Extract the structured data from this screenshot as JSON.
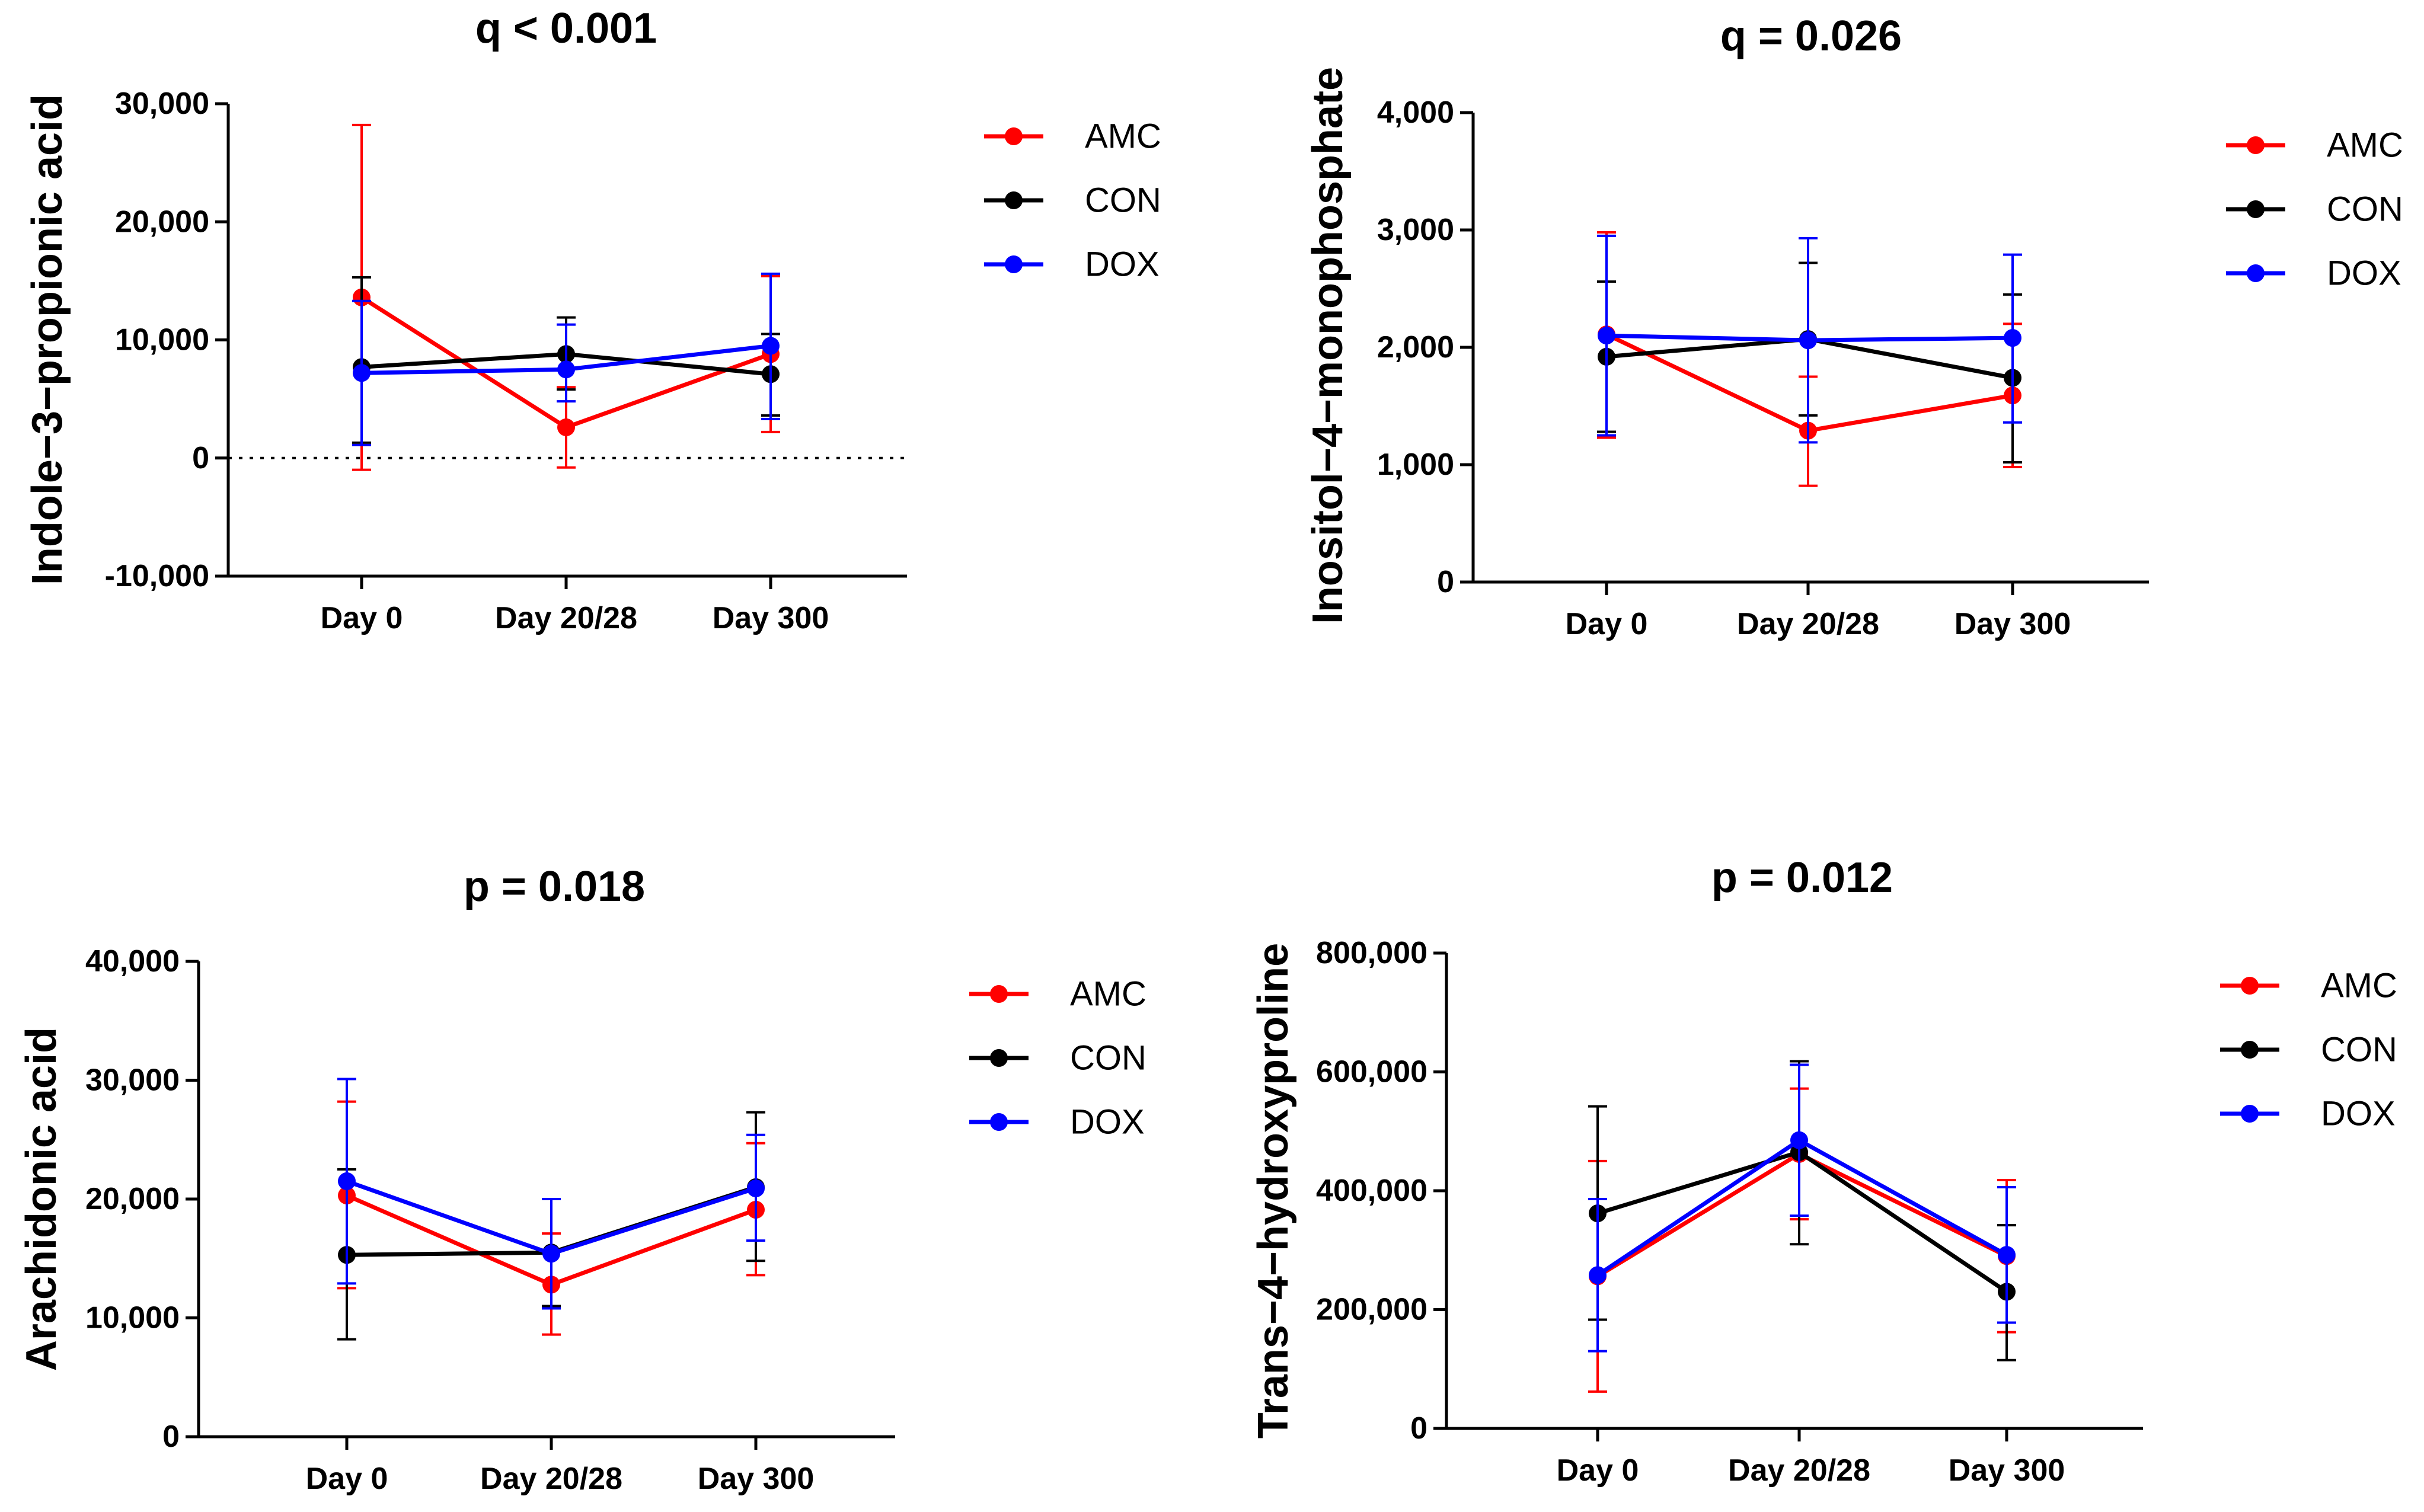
{
  "chart_data": [
    {
      "type": "line",
      "title": "q < 0.001",
      "xlabel": "",
      "ylabel": "Indole−3−propionic acid",
      "categories": [
        "Day 0",
        "Day 20/28",
        "Day 300"
      ],
      "ylim": [
        -10000,
        30000
      ],
      "yticks": [
        -10000,
        0,
        10000,
        20000,
        30000
      ],
      "ytick_labels": [
        "-10,000",
        "0",
        "10,000",
        "20,000",
        "30,000"
      ],
      "zero_line": true,
      "legend": "right",
      "series": [
        {
          "name": "AMC",
          "color": "#ff0000",
          "values": [
            13600,
            2600,
            8800
          ],
          "err_low": [
            -1000,
            -800,
            2200
          ],
          "err_high": [
            28200,
            6000,
            15400
          ]
        },
        {
          "name": "CON",
          "color": "#000000",
          "values": [
            7700,
            8800,
            7100
          ],
          "err_low": [
            1300,
            5800,
            3600
          ],
          "err_high": [
            15300,
            11900,
            10500
          ]
        },
        {
          "name": "DOX",
          "color": "#0000ff",
          "values": [
            7200,
            7500,
            9500
          ],
          "err_low": [
            1100,
            4800,
            3300
          ],
          "err_high": [
            13300,
            11300,
            15600
          ]
        }
      ]
    },
    {
      "type": "line",
      "title": "q = 0.026",
      "xlabel": "",
      "ylabel": "Inositol−4−monophosphate",
      "categories": [
        "Day 0",
        "Day 20/28",
        "Day 300"
      ],
      "ylim": [
        0,
        4000
      ],
      "yticks": [
        0,
        1000,
        2000,
        3000,
        4000
      ],
      "ytick_labels": [
        "0",
        "1,000",
        "2,000",
        "3,000",
        "4,000"
      ],
      "zero_line": false,
      "legend": "right",
      "series": [
        {
          "name": "AMC",
          "color": "#ff0000",
          "values": [
            2110,
            1290,
            1590
          ],
          "err_low": [
            1230,
            820,
            980
          ],
          "err_high": [
            2980,
            1750,
            2200
          ]
        },
        {
          "name": "CON",
          "color": "#000000",
          "values": [
            1920,
            2070,
            1740
          ],
          "err_low": [
            1280,
            1420,
            1020
          ],
          "err_high": [
            2560,
            2720,
            2450
          ]
        },
        {
          "name": "DOX",
          "color": "#0000ff",
          "values": [
            2100,
            2060,
            2080
          ],
          "err_low": [
            1250,
            1190,
            1360
          ],
          "err_high": [
            2950,
            2930,
            2790
          ]
        }
      ]
    },
    {
      "type": "line",
      "title": "p = 0.018",
      "xlabel": "",
      "ylabel": "Arachidonic acid",
      "categories": [
        "Day 0",
        "Day 20/28",
        "Day 300"
      ],
      "ylim": [
        0,
        40000
      ],
      "yticks": [
        0,
        10000,
        20000,
        30000,
        40000
      ],
      "ytick_labels": [
        "0",
        "10,000",
        "20,000",
        "30,000",
        "40,000"
      ],
      "zero_line": false,
      "legend": "right",
      "series": [
        {
          "name": "AMC",
          "color": "#ff0000",
          "values": [
            20300,
            12800,
            19100
          ],
          "err_low": [
            12500,
            8600,
            13600
          ],
          "err_high": [
            28200,
            17100,
            24700
          ]
        },
        {
          "name": "CON",
          "color": "#000000",
          "values": [
            15300,
            15500,
            21000
          ],
          "err_low": [
            8200,
            11000,
            14800
          ],
          "err_high": [
            22500,
            20000,
            27300
          ]
        },
        {
          "name": "DOX",
          "color": "#0000ff",
          "values": [
            21500,
            15400,
            20900
          ],
          "err_low": [
            12900,
            10800,
            16500
          ],
          "err_high": [
            30100,
            20000,
            25400
          ]
        }
      ]
    },
    {
      "type": "line",
      "title": "p = 0.012",
      "xlabel": "",
      "ylabel": "Trans−4−hydroxyproline",
      "categories": [
        "Day 0",
        "Day 20/28",
        "Day 300"
      ],
      "ylim": [
        0,
        800000
      ],
      "yticks": [
        0,
        200000,
        400000,
        600000,
        800000
      ],
      "ytick_labels": [
        "0",
        "200,000",
        "400,000",
        "600,000",
        "800,000"
      ],
      "zero_line": false,
      "legend": "right",
      "series": [
        {
          "name": "AMC",
          "color": "#ff0000",
          "values": [
            256000,
            462000,
            290000
          ],
          "err_low": [
            62000,
            352000,
            162000
          ],
          "err_high": [
            450000,
            572000,
            418000
          ]
        },
        {
          "name": "CON",
          "color": "#000000",
          "values": [
            362000,
            465000,
            230000
          ],
          "err_low": [
            183000,
            310000,
            115000
          ],
          "err_high": [
            542000,
            618000,
            342000
          ]
        },
        {
          "name": "DOX",
          "color": "#0000ff",
          "values": [
            258000,
            485000,
            292000
          ],
          "err_low": [
            130000,
            358000,
            178000
          ],
          "err_high": [
            386000,
            612000,
            406000
          ]
        }
      ]
    }
  ]
}
